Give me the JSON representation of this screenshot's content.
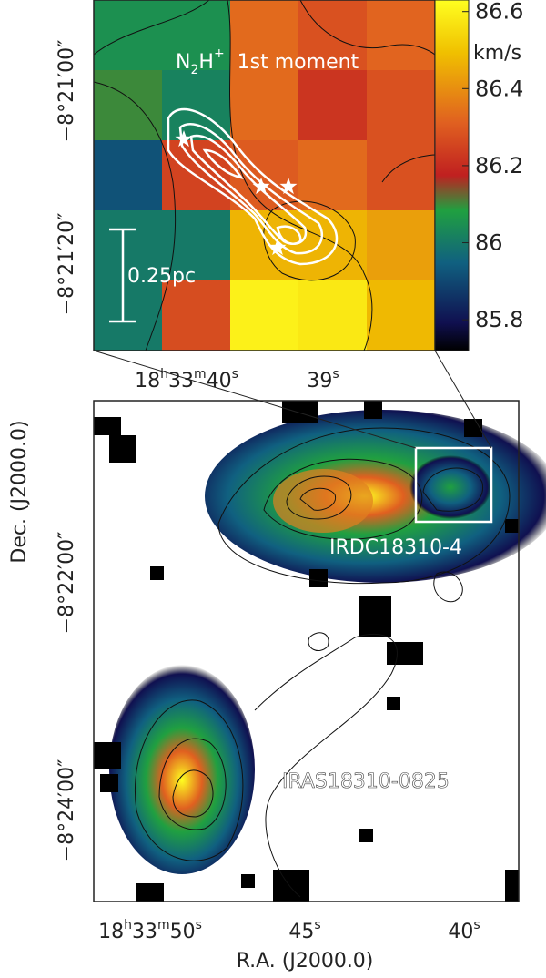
{
  "chart_data": {
    "type": "heatmap",
    "title": {
      "base": "N",
      "sub": "2",
      "mid": "H",
      "sup": "+",
      "rest": "1st moment"
    },
    "values": [
      [
        86.05,
        86.05,
        86.33,
        86.28,
        86.32
      ],
      [
        86.1,
        86.02,
        86.33,
        86.22,
        86.28
      ],
      [
        85.92,
        86.25,
        86.3,
        86.33,
        86.28
      ],
      [
        86.0,
        86.0,
        86.47,
        86.47,
        86.43
      ],
      [
        86.0,
        86.27,
        86.6,
        86.58,
        86.48
      ]
    ],
    "colorbar": {
      "label": "km/s",
      "lim": [
        85.72,
        86.63
      ],
      "ticks": [
        85.8,
        86,
        86.2,
        86.4,
        86.6
      ]
    },
    "scale_bar": "0.25pc",
    "y_tick_labels": [
      "−8°21′00″",
      "−8°21′20″"
    ],
    "x_tick_labels": [
      [
        "18",
        "h",
        "33",
        "m",
        "40",
        "s"
      ],
      [
        "39",
        "s"
      ]
    ]
  },
  "overview": {
    "y_label": "Dec. (J2000.0)",
    "x_label": "R.A. (J2000.0)",
    "y_tick_labels": [
      "−8°22′00″",
      "−8°24′00″"
    ],
    "x_tick_labels": [
      [
        "18",
        "h",
        "33",
        "m",
        "50",
        "s"
      ],
      [
        "45",
        "s"
      ],
      [
        "40",
        "s"
      ]
    ],
    "sources": [
      "IRDC18310-4",
      "IRAS18310-0825"
    ]
  }
}
